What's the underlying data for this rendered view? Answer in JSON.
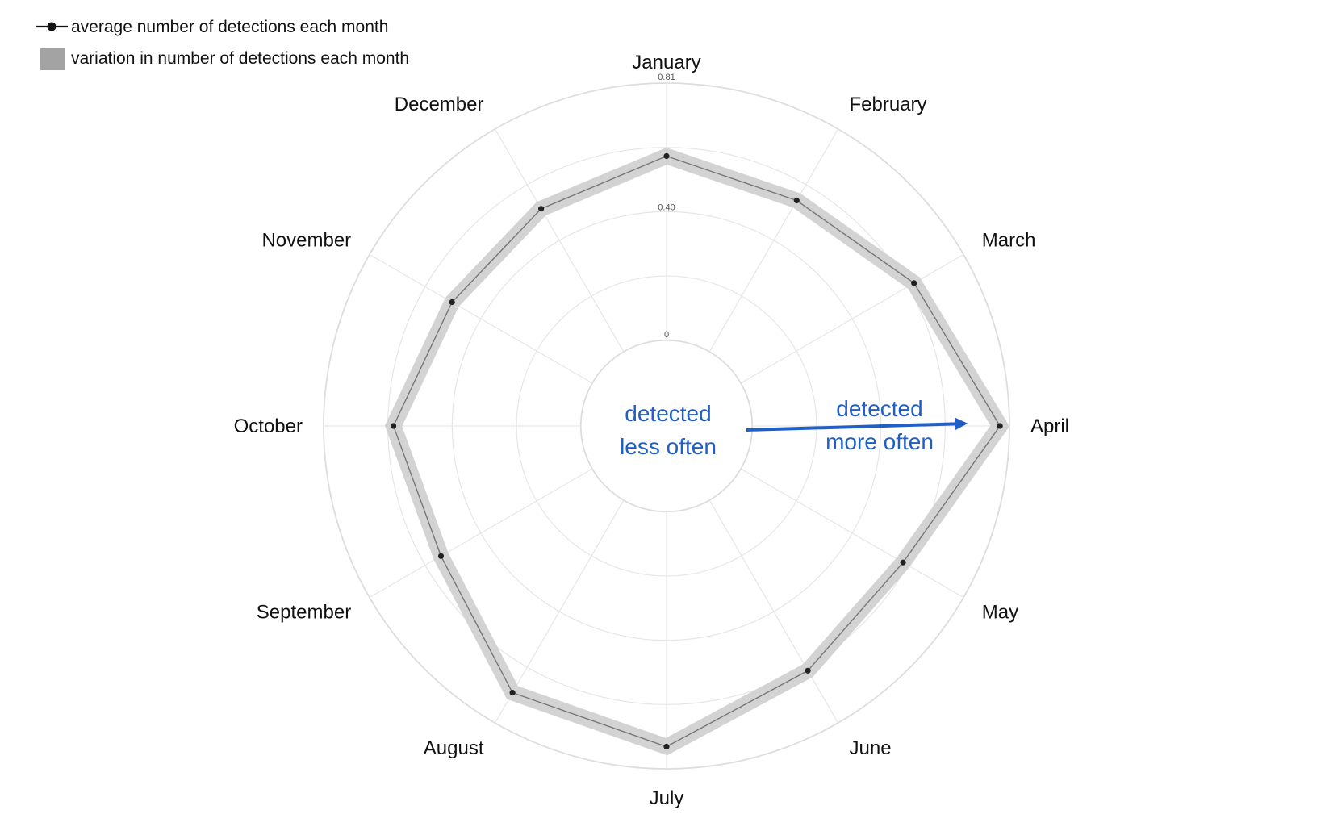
{
  "chart_data": {
    "type": "radar",
    "categories": [
      "January",
      "February",
      "March",
      "April",
      "May",
      "June",
      "July",
      "August",
      "September",
      "October",
      "November",
      "December"
    ],
    "series": [
      {
        "name": "average number of detections each month",
        "values": [
          0.58,
          0.55,
          0.63,
          0.78,
          0.59,
          0.62,
          0.74,
          0.7,
          0.55,
          0.59,
          0.51,
          0.52
        ],
        "band_halfwidth": [
          0.025,
          0.025,
          0.025,
          0.025,
          0.025,
          0.025,
          0.025,
          0.025,
          0.025,
          0.025,
          0.025,
          0.025
        ]
      }
    ],
    "radial_ticks": [
      {
        "value": 0,
        "label": "0"
      },
      {
        "value": 0.4,
        "label": "0.40"
      },
      {
        "value": 0.81,
        "label": "0.81"
      }
    ],
    "rlim": [
      0,
      0.81
    ],
    "inner_hole_fraction": 0.25,
    "grid": true,
    "legend": {
      "placement": "top-left",
      "items": [
        {
          "label": "average number of detections each month",
          "kind": "line-marker"
        },
        {
          "label": "variation in number of detections each month",
          "kind": "band"
        }
      ]
    },
    "annotations": {
      "center_lines": [
        "detected",
        "less often"
      ],
      "arrow_lines": [
        "detected",
        "more often"
      ]
    },
    "colors": {
      "line": "#777777",
      "marker": "#222222",
      "band": "#d3d3d3",
      "grid": "#e6e6e6",
      "outer_ring": "#dddddd",
      "annotation": "#1f5fc6"
    }
  }
}
